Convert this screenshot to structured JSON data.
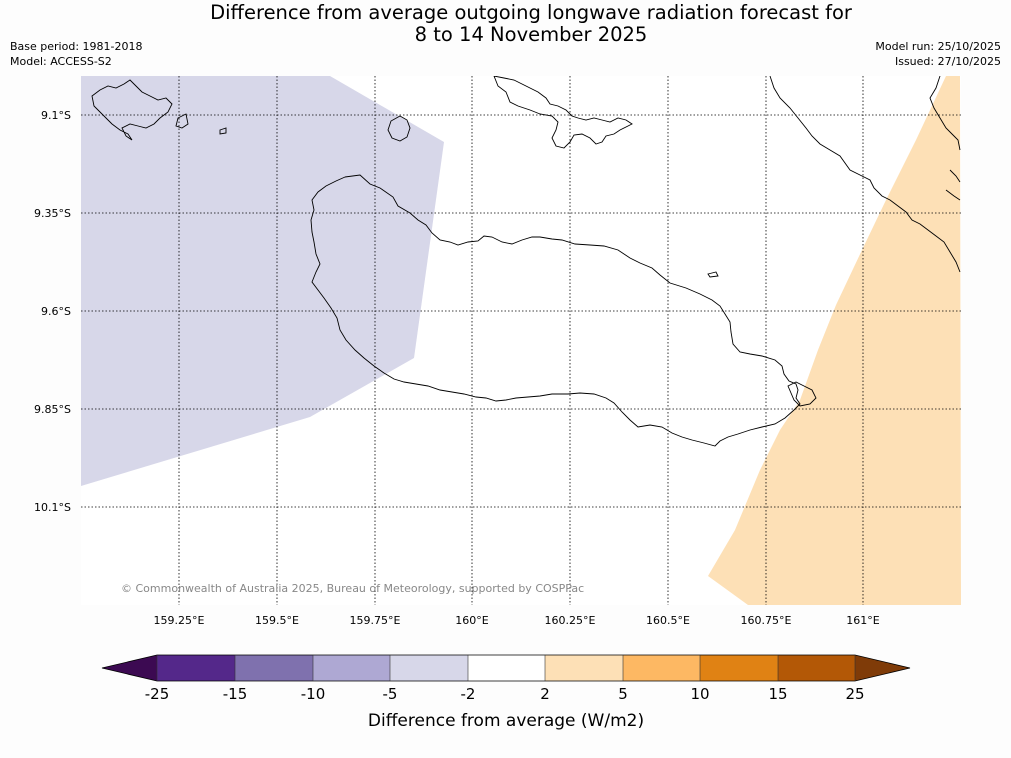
{
  "title": {
    "line1": "Difference from average outgoing longwave radiation forecast for",
    "line2": "8 to 14 November 2025"
  },
  "info": {
    "base_period": "Base period: 1981-2018",
    "model": "Model: ACCESS-S2",
    "model_run": "Model run: 25/10/2025",
    "issued": "Issued: 27/10/2025"
  },
  "map": {
    "lat_labels": [
      "9.1°S",
      "9.35°S",
      "9.6°S",
      "9.85°S",
      "10.1°S"
    ],
    "lon_labels": [
      "159.25°E",
      "159.5°E",
      "159.75°E",
      "160°E",
      "160.25°E",
      "160.5°E",
      "160.75°E",
      "161°E"
    ],
    "copyright": "© Commonwealth of Australia 2025, Bureau of Meteorology, supported by COSPPac",
    "colors": {
      "negative_region": "#d7d7e9",
      "positive_region": "#fde0b6",
      "coastline": "#000000"
    }
  },
  "colorbar": {
    "label": "Difference from average (W/m2)",
    "ticks": [
      "-25",
      "-15",
      "-10",
      "-5",
      "-2",
      "2",
      "5",
      "10",
      "15",
      "25"
    ],
    "colors": [
      "#3c0a52",
      "#54288a",
      "#7f71ae",
      "#aea8d3",
      "#d7d7e9",
      "#ffffff",
      "#fde0b6",
      "#fdb863",
      "#e08214",
      "#b35806",
      "#7f3b08"
    ]
  }
}
